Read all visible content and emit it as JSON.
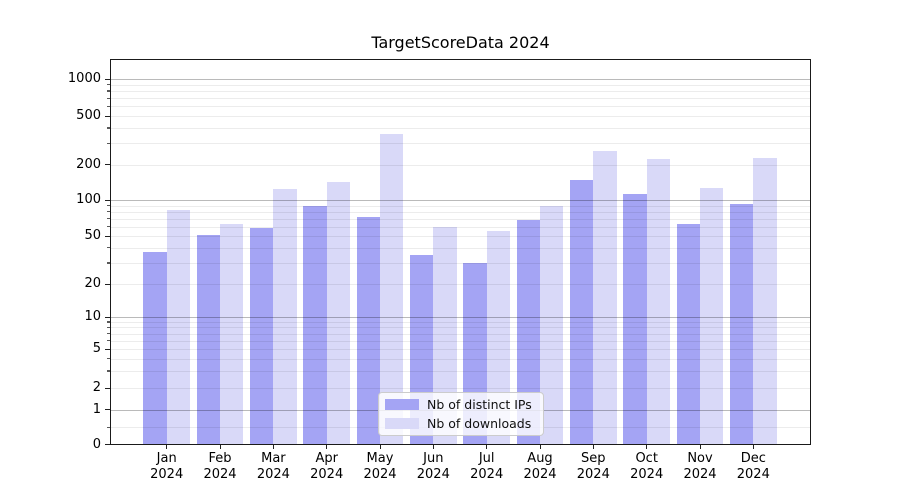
{
  "title": "TargetScoreData 2024",
  "chart_data": {
    "type": "bar",
    "title": "TargetScoreData 2024",
    "categories": [
      "Jan 2024",
      "Feb 2024",
      "Mar 2024",
      "Apr 2024",
      "May 2024",
      "Jun 2024",
      "Jul 2024",
      "Aug 2024",
      "Sep 2024",
      "Oct 2024",
      "Nov 2024",
      "Dec 2024"
    ],
    "series": [
      {
        "name": "Nb of distinct IPs",
        "color": "#a4a4f4",
        "values": [
          37,
          51,
          58,
          89,
          72,
          35,
          30,
          68,
          150,
          113,
          63,
          93
        ]
      },
      {
        "name": "Nb of downloads",
        "color": "#d9d9f8",
        "values": [
          83,
          63,
          124,
          143,
          360,
          60,
          55,
          90,
          260,
          224,
          127,
          226
        ]
      }
    ],
    "xlabel": "",
    "ylabel": "",
    "yscale": "log-like (1-2-5 progression with 0 baseline)",
    "y_ticks": [
      0,
      1,
      2,
      5,
      10,
      20,
      50,
      100,
      200,
      500,
      1000
    ],
    "ylim": [
      0,
      1400
    ],
    "grid": true,
    "legend_position": "lower center"
  }
}
